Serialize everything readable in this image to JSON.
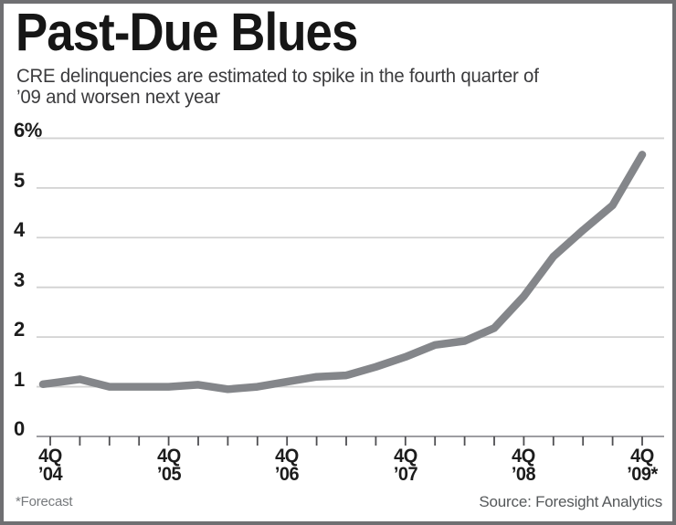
{
  "page": {
    "title": "Past-Due Blues",
    "subtitle_lines": [
      "CRE delinquencies are estimated to spike in the fourth quarter of",
      "’09 and worsen next year"
    ],
    "footnote": "*Forecast",
    "source": "Source: Foresight Analytics"
  },
  "chart_data": {
    "type": "line",
    "title": "Past-Due Blues",
    "subtitle": "CRE delinquencies are estimated to spike in the fourth quarter of ’09 and worsen next year",
    "x": [
      "4Q ’04",
      "1Q ’05",
      "2Q ’05",
      "3Q ’05",
      "4Q ’05",
      "1Q ’06",
      "2Q ’06",
      "3Q ’06",
      "4Q ’06",
      "1Q ’07",
      "2Q ’07",
      "3Q ’07",
      "4Q ’07",
      "1Q ’08",
      "2Q ’08",
      "3Q ’08",
      "4Q ’08",
      "1Q ’09",
      "2Q ’09",
      "3Q ’09",
      "4Q ’09*"
    ],
    "values": [
      1.07,
      1.15,
      1.0,
      1.0,
      1.0,
      1.04,
      0.95,
      1.0,
      1.1,
      1.2,
      1.23,
      1.4,
      1.6,
      1.84,
      1.92,
      2.18,
      2.82,
      3.62,
      4.15,
      4.65,
      5.67
    ],
    "unit": "%",
    "ylim": [
      0,
      6
    ],
    "y_ticks": [
      0,
      1,
      2,
      3,
      4,
      5,
      6
    ],
    "y_tick_labels": [
      "0",
      "1",
      "2",
      "3",
      "4",
      "5",
      "6%"
    ],
    "x_axis_labels": [
      {
        "tick_index": 0,
        "line1": "4Q",
        "line2": "’04"
      },
      {
        "tick_index": 4,
        "line1": "4Q",
        "line2": "’05"
      },
      {
        "tick_index": 8,
        "line1": "4Q",
        "line2": "’06"
      },
      {
        "tick_index": 12,
        "line1": "4Q",
        "line2": "’07"
      },
      {
        "tick_index": 16,
        "line1": "4Q",
        "line2": "’08"
      },
      {
        "tick_index": 20,
        "line1": "4Q",
        "line2": "’09*"
      }
    ],
    "grid": true,
    "legend": "none",
    "line_color": "#84868a",
    "grid_color": "#d2d2d2",
    "axis_color": "#919194",
    "tick_color": "#4f4f52",
    "footnote": "*Forecast",
    "source": "Source: Foresight Analytics"
  }
}
